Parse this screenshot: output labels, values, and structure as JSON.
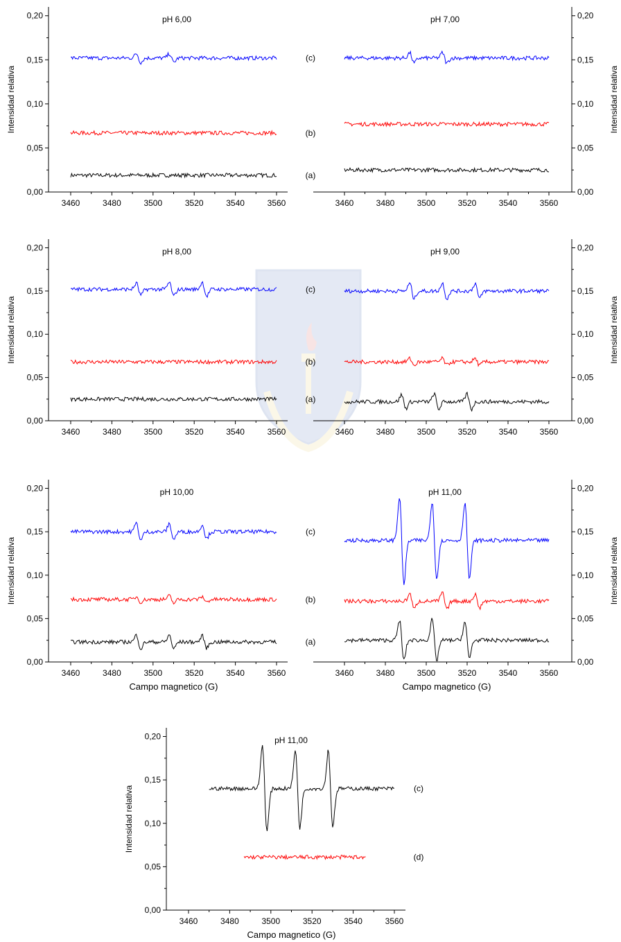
{
  "chart_data": [
    {
      "type": "line",
      "title": "pH 6,00",
      "xlabel": "",
      "ylabel": "Intensidad relativa",
      "xlim": [
        3450,
        3570
      ],
      "ylim": [
        0,
        0.21
      ],
      "xticks": [
        "3460",
        "3480",
        "3500",
        "3520",
        "3540",
        "3560"
      ],
      "yticks": [
        "0,00",
        "0,05",
        "0,10",
        "0,15",
        "0,20"
      ],
      "series": [
        {
          "name": "(a)",
          "color": "#000000",
          "x": [
            3460,
            3560
          ],
          "baseline": 0.019,
          "peaks": []
        },
        {
          "name": "(b)",
          "color": "#ff0000",
          "x": [
            3460,
            3560
          ],
          "baseline": 0.067,
          "peaks": []
        },
        {
          "name": "(c)",
          "color": "#0000ff",
          "x": [
            3460,
            3560
          ],
          "baseline": 0.152,
          "peaks": [
            {
              "x": 3493,
              "amp": 0.005
            },
            {
              "x": 3509,
              "amp": 0.005
            }
          ]
        }
      ]
    },
    {
      "type": "line",
      "title": "pH 7,00",
      "xlabel": "",
      "ylabel": "Intensidad relativa",
      "xlim": [
        3450,
        3570
      ],
      "ylim": [
        0,
        0.21
      ],
      "xticks": [
        "3460",
        "3480",
        "3500",
        "3520",
        "3540",
        "3560"
      ],
      "yticks": [
        "0,00",
        "0,05",
        "0,10",
        "0,15",
        "0,20"
      ],
      "series": [
        {
          "name": "(a)",
          "color": "#000000",
          "x": [
            3460,
            3560
          ],
          "baseline": 0.025,
          "peaks": []
        },
        {
          "name": "(b)",
          "color": "#ff0000",
          "x": [
            3460,
            3560
          ],
          "baseline": 0.077,
          "peaks": []
        },
        {
          "name": "(c)",
          "color": "#0000ff",
          "x": [
            3460,
            3560
          ],
          "baseline": 0.152,
          "peaks": [
            {
              "x": 3493,
              "amp": 0.006
            },
            {
              "x": 3509,
              "amp": 0.006
            }
          ]
        }
      ]
    },
    {
      "type": "line",
      "title": "pH 8,00",
      "xlabel": "",
      "ylabel": "Intensidad relativa",
      "xlim": [
        3450,
        3570
      ],
      "ylim": [
        0,
        0.21
      ],
      "xticks": [
        "3460",
        "3480",
        "3500",
        "3520",
        "3540",
        "3560"
      ],
      "yticks": [
        "0,00",
        "0,05",
        "0,10",
        "0,15",
        "0,20"
      ],
      "series": [
        {
          "name": "(a)",
          "color": "#000000",
          "x": [
            3460,
            3560
          ],
          "baseline": 0.025,
          "peaks": []
        },
        {
          "name": "(b)",
          "color": "#ff0000",
          "x": [
            3460,
            3560
          ],
          "baseline": 0.068,
          "peaks": []
        },
        {
          "name": "(c)",
          "color": "#0000ff",
          "x": [
            3460,
            3560
          ],
          "baseline": 0.152,
          "peaks": [
            {
              "x": 3493,
              "amp": 0.007
            },
            {
              "x": 3509,
              "amp": 0.008
            },
            {
              "x": 3525,
              "amp": 0.008
            }
          ]
        }
      ]
    },
    {
      "type": "line",
      "title": "pH 9,00",
      "xlabel": "",
      "ylabel": "Intensidad relativa",
      "xlim": [
        3450,
        3570
      ],
      "ylim": [
        0,
        0.21
      ],
      "xticks": [
        "3460",
        "3480",
        "3500",
        "3520",
        "3540",
        "3560"
      ],
      "yticks": [
        "0,00",
        "0,05",
        "0,10",
        "0,15",
        "0,20"
      ],
      "series": [
        {
          "name": "(a)",
          "color": "#000000",
          "x": [
            3460,
            3560
          ],
          "baseline": 0.022,
          "peaks": [
            {
              "x": 3489,
              "amp": 0.008
            },
            {
              "x": 3505,
              "amp": 0.009
            },
            {
              "x": 3521,
              "amp": 0.009
            }
          ]
        },
        {
          "name": "(b)",
          "color": "#ff0000",
          "x": [
            3460,
            3560
          ],
          "baseline": 0.068,
          "peaks": [
            {
              "x": 3493,
              "amp": 0.004
            },
            {
              "x": 3509,
              "amp": 0.004
            },
            {
              "x": 3525,
              "amp": 0.004
            }
          ]
        },
        {
          "name": "(c)",
          "color": "#0000ff",
          "x": [
            3460,
            3560
          ],
          "baseline": 0.15,
          "peaks": [
            {
              "x": 3493,
              "amp": 0.009
            },
            {
              "x": 3509,
              "amp": 0.009
            },
            {
              "x": 3525,
              "amp": 0.009
            }
          ]
        }
      ]
    },
    {
      "type": "line",
      "title": "pH 10,00",
      "xlabel": "Campo magnetico (G)",
      "ylabel": "Intensidad relativa",
      "xlim": [
        3450,
        3570
      ],
      "ylim": [
        0,
        0.21
      ],
      "xticks": [
        "3460",
        "3480",
        "3500",
        "3520",
        "3540",
        "3560"
      ],
      "yticks": [
        "0,00",
        "0,05",
        "0,10",
        "0,15",
        "0,20"
      ],
      "series": [
        {
          "name": "(a)",
          "color": "#000000",
          "x": [
            3460,
            3560
          ],
          "baseline": 0.023,
          "peaks": [
            {
              "x": 3493,
              "amp": 0.008
            },
            {
              "x": 3509,
              "amp": 0.008
            },
            {
              "x": 3525,
              "amp": 0.007
            }
          ]
        },
        {
          "name": "(b)",
          "color": "#ff0000",
          "x": [
            3460,
            3560
          ],
          "baseline": 0.072,
          "peaks": [
            {
              "x": 3493,
              "amp": 0.003
            },
            {
              "x": 3509,
              "amp": 0.004
            },
            {
              "x": 3525,
              "amp": 0.003
            }
          ]
        },
        {
          "name": "(c)",
          "color": "#0000ff",
          "x": [
            3460,
            3560
          ],
          "baseline": 0.15,
          "peaks": [
            {
              "x": 3493,
              "amp": 0.01
            },
            {
              "x": 3509,
              "amp": 0.009
            },
            {
              "x": 3525,
              "amp": 0.008
            }
          ]
        }
      ]
    },
    {
      "type": "line",
      "title": "pH 11,00",
      "xlabel": "Campo magnetico (G)",
      "ylabel": "Intensidad relativa",
      "xlim": [
        3450,
        3570
      ],
      "ylim": [
        0,
        0.21
      ],
      "xticks": [
        "3460",
        "3480",
        "3500",
        "3520",
        "3540",
        "3560"
      ],
      "yticks": [
        "0,00",
        "0,05",
        "0,10",
        "0,15",
        "0,20"
      ],
      "series": [
        {
          "name": "(a)",
          "color": "#000000",
          "x": [
            3460,
            3560
          ],
          "baseline": 0.025,
          "peaks": [
            {
              "x": 3488,
              "amp": 0.023
            },
            {
              "x": 3504,
              "amp": 0.024
            },
            {
              "x": 3520,
              "amp": 0.021
            }
          ]
        },
        {
          "name": "(b)",
          "color": "#ff0000",
          "x": [
            3460,
            3560
          ],
          "baseline": 0.07,
          "peaks": [
            {
              "x": 3493,
              "amp": 0.009
            },
            {
              "x": 3509,
              "amp": 0.01
            },
            {
              "x": 3525,
              "amp": 0.008
            }
          ]
        },
        {
          "name": "(c)",
          "color": "#0000ff",
          "x": [
            3460,
            3560
          ],
          "baseline": 0.14,
          "peaks": [
            {
              "x": 3488,
              "amp": 0.05
            },
            {
              "x": 3504,
              "amp": 0.045
            },
            {
              "x": 3520,
              "amp": 0.044
            }
          ]
        }
      ]
    },
    {
      "type": "line",
      "title": "pH 11,00",
      "xlabel": "Campo magnetico (G)",
      "ylabel": "Intensidad relativa",
      "xlim": [
        3450,
        3570
      ],
      "ylim": [
        0,
        0.21
      ],
      "xticks": [
        "3460",
        "3480",
        "3500",
        "3520",
        "3540",
        "3560"
      ],
      "yticks": [
        "0,00",
        "0,05",
        "0,10",
        "0,15",
        "0,20"
      ],
      "series": [
        {
          "name": "(c)",
          "color": "#000000",
          "x": [
            3470,
            3560
          ],
          "baseline": 0.14,
          "peaks": [
            {
              "x": 3497,
              "amp": 0.05
            },
            {
              "x": 3513,
              "amp": 0.045
            },
            {
              "x": 3529,
              "amp": 0.044
            }
          ]
        },
        {
          "name": "(d)",
          "color": "#ff0000",
          "x": [
            3487,
            3546
          ],
          "baseline": 0.061,
          "peaks": []
        }
      ]
    }
  ]
}
